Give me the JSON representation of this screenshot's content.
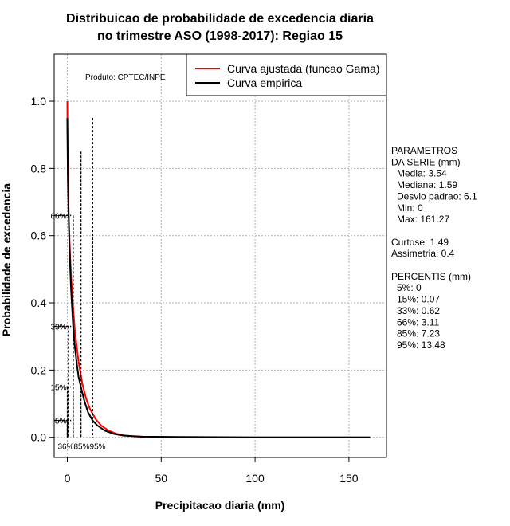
{
  "chart_data": {
    "type": "line",
    "title_line1": "Distribuicao de probabilidade de excedencia diaria",
    "title_line2": "no trimestre ASO (1998-2017): Regiao 15",
    "xlabel": "Precipitacao diaria (mm)",
    "ylabel": "Probabilidade de excedencia",
    "xlim": [
      -7,
      170
    ],
    "ylim": [
      -0.06,
      1.14
    ],
    "xticks": [
      0,
      50,
      100,
      150
    ],
    "yticks": [
      0.0,
      0.2,
      0.4,
      0.6,
      0.8,
      1.0
    ],
    "grid": true,
    "product_label": "Produto: CPTEC/INPE",
    "legend": {
      "position": "top-right",
      "entries": [
        {
          "label": "Curva ajustada (funcao Gama)",
          "color": "#ff0000"
        },
        {
          "label": "Curva empirica",
          "color": "#000000"
        }
      ]
    },
    "series": [
      {
        "name": "Curva ajustada (funcao Gama)",
        "color": "#ff0000",
        "x": [
          0,
          0.1,
          0.3,
          0.6,
          1,
          1.5,
          2,
          3,
          4,
          5,
          6,
          8,
          10,
          12,
          15,
          18,
          22,
          26,
          30,
          35,
          40,
          45,
          50,
          60,
          80,
          100,
          130,
          161.27
        ],
        "y": [
          1.0,
          0.93,
          0.8,
          0.7,
          0.62,
          0.54,
          0.48,
          0.39,
          0.32,
          0.27,
          0.225,
          0.16,
          0.115,
          0.085,
          0.055,
          0.035,
          0.02,
          0.011,
          0.006,
          0.003,
          0.0015,
          0.0007,
          0.0003,
          0.0001,
          0,
          0,
          0,
          0
        ]
      },
      {
        "name": "Curva empirica",
        "color": "#000000",
        "x": [
          0,
          0.3,
          0.62,
          1,
          1.59,
          2,
          3.11,
          4,
          5,
          6,
          7.23,
          9,
          11,
          13.48,
          16,
          20,
          25,
          30,
          40,
          60,
          100,
          161.27
        ],
        "y": [
          0.95,
          0.77,
          0.67,
          0.6,
          0.5,
          0.44,
          0.33,
          0.27,
          0.22,
          0.18,
          0.15,
          0.11,
          0.075,
          0.05,
          0.035,
          0.02,
          0.01,
          0.005,
          0.002,
          0.001,
          0,
          0
        ]
      }
    ],
    "percentile_markers": [
      {
        "label": "5%",
        "x": 0,
        "y": 0.05
      },
      {
        "label": "15%",
        "x": 0.07,
        "y": 0.15
      },
      {
        "label": "33%",
        "x": 0.62,
        "y": 0.33
      },
      {
        "label": "66%",
        "x": 3.11,
        "y": 0.66
      },
      {
        "label": "85%",
        "x": 7.23,
        "y": 0.85
      },
      {
        "label": "95%",
        "x": 13.48,
        "y": 0.95
      }
    ],
    "y_marker_labels": [
      {
        "label": "66%",
        "y": 0.66
      },
      {
        "label": "33%",
        "y": 0.33
      },
      {
        "label": "15%",
        "y": 0.15
      },
      {
        "label": "5%",
        "y": 0.05
      }
    ],
    "x_marker_label_text": "36%85%95%",
    "stats_lines": [
      {
        "text": "PARAMETROS",
        "indent": 0
      },
      {
        "text": "DA SERIE (mm)",
        "indent": 0
      },
      {
        "text": "Media: 3.54",
        "indent": 1
      },
      {
        "text": "Mediana: 1.59",
        "indent": 1
      },
      {
        "text": "Desvio padrao: 6.1",
        "indent": 1
      },
      {
        "text": "Min: 0",
        "indent": 1
      },
      {
        "text": "Max: 161.27",
        "indent": 1
      },
      {
        "text": "",
        "indent": 0
      },
      {
        "text": "Curtose: 1.49",
        "indent": 0
      },
      {
        "text": "Assimetria: 0.4",
        "indent": 0
      },
      {
        "text": "",
        "indent": 0
      },
      {
        "text": "PERCENTIS (mm)",
        "indent": 0
      },
      {
        "text": "5%: 0",
        "indent": 1
      },
      {
        "text": "15%: 0.07",
        "indent": 1
      },
      {
        "text": "33%: 0.62",
        "indent": 1
      },
      {
        "text": "66%: 3.11",
        "indent": 1
      },
      {
        "text": "85%: 7.23",
        "indent": 1
      },
      {
        "text": "95%: 13.48",
        "indent": 1
      }
    ]
  }
}
